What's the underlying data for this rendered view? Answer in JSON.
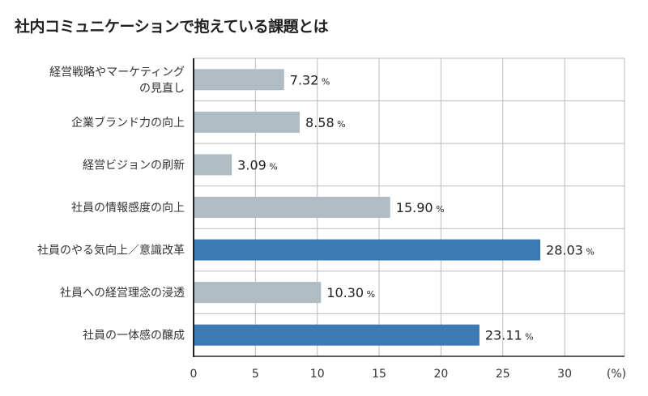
{
  "chart_data": {
    "type": "bar",
    "orientation": "horizontal",
    "title": "社内コミュニケーションで抱えている課題とは",
    "categories": [
      [
        "経営戦略やマーケティング",
        "の見直し"
      ],
      [
        "企業ブランド力の向上"
      ],
      [
        "経営ビジョンの刷新"
      ],
      [
        "社員の情報感度の向上"
      ],
      [
        "社員のやる気向上／意識改革"
      ],
      [
        "社員への経営理念の浸透"
      ],
      [
        "社員の一体感の醸成"
      ]
    ],
    "values": [
      7.32,
      8.58,
      3.09,
      15.9,
      28.03,
      10.3,
      23.11
    ],
    "value_labels": [
      "7.32",
      "8.58",
      "3.09",
      "15.90",
      "28.03",
      "10.30",
      "23.11"
    ],
    "value_unit": "%",
    "highlighted": [
      false,
      false,
      false,
      false,
      true,
      false,
      true
    ],
    "xlim": [
      0,
      35
    ],
    "xticks": [
      0,
      5,
      10,
      15,
      20,
      25,
      30
    ],
    "xlabel": "(%)",
    "grid": true,
    "colors": {
      "default": "#b0bcc3",
      "highlight": "#3d79b3",
      "grid": "#bbbbbb",
      "axis": "#222222"
    }
  }
}
